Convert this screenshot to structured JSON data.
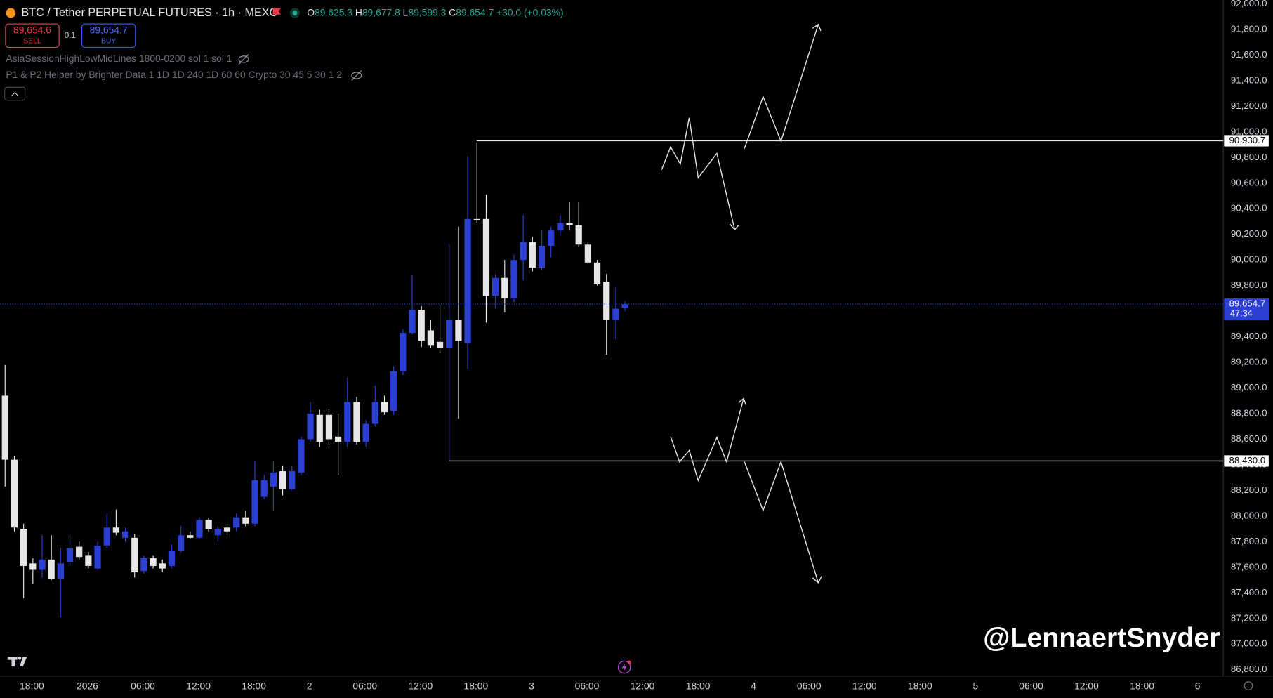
{
  "header": {
    "title": "BTC / Tether PERPETUAL FUTURES · 1h · MEXC",
    "ohlc": [
      {
        "key": "O",
        "value": "89,625.3"
      },
      {
        "key": "H",
        "value": "89,677.8"
      },
      {
        "key": "L",
        "value": "89,599.3"
      },
      {
        "key": "C",
        "value": "89,654.7"
      }
    ],
    "change": "+30.0 (+0.03%)",
    "sell": {
      "price": "89,654.6",
      "label": "SELL"
    },
    "quantity": "0.1",
    "buy": {
      "price": "89,654.7",
      "label": "BUY"
    },
    "indicators": [
      "AsiaSessionHighLowMidLines 1800-0200 sol 1 sol 1",
      "P1 & P2 Helper by Brighter Data 1 1D 1D 240 1D 60 60 Crypto 30 45 5 30 1 2"
    ]
  },
  "watermark": "@LennaertSnyder",
  "chart_data": {
    "type": "candlestick",
    "up_color": "#2b3fd3",
    "down_color": "#e6e6e6",
    "grid": false,
    "open": [
      88940,
      88440,
      87900,
      87630,
      87580,
      87660,
      87510,
      87640,
      87760,
      87690,
      87590,
      87770,
      87910,
      87830,
      87830,
      87570,
      87670,
      87630,
      87610,
      87730,
      87850,
      87830,
      87970,
      87850,
      87910,
      87910,
      87990,
      87940,
      88150,
      88230,
      88350,
      88210,
      88340,
      88600,
      88790,
      88790,
      88620,
      88580,
      88890,
      88580,
      88720,
      88890,
      88820,
      89130,
      89430,
      89610,
      89450,
      89360,
      89310,
      89530,
      89350,
      90320,
      90320,
      89720,
      89860,
      89700,
      90000,
      90140,
      89940,
      90110,
      90230,
      90290,
      90270,
      90120,
      89980,
      89830,
      89530,
      89625.3
    ],
    "high": [
      89180,
      88470,
      87940,
      87670,
      87850,
      87850,
      87750,
      87850,
      87800,
      87720,
      87800,
      88020,
      88050,
      87910,
      87860,
      87690,
      87690,
      87660,
      87780,
      87920,
      87880,
      87990,
      87990,
      87920,
      87940,
      88020,
      88040,
      88430,
      88320,
      88430,
      88390,
      88390,
      88620,
      88890,
      88830,
      88830,
      88800,
      89080,
      88930,
      88750,
      89020,
      88940,
      89170,
      89460,
      89880,
      89640,
      89530,
      89650,
      90130,
      90260,
      90810,
      90920,
      90510,
      89890,
      90000,
      90040,
      90350,
      90180,
      90230,
      90260,
      90350,
      90450,
      90450,
      90140,
      90000,
      89890,
      89790,
      89677.8
    ],
    "low": [
      88230,
      87880,
      87360,
      87470,
      87520,
      87500,
      87210,
      87610,
      87660,
      87590,
      87580,
      87750,
      87850,
      87800,
      87520,
      87550,
      87590,
      87560,
      87590,
      87720,
      87820,
      87820,
      87880,
      87800,
      87850,
      87880,
      87920,
      87920,
      88130,
      88040,
      88160,
      88200,
      88320,
      88580,
      88540,
      88560,
      88320,
      88540,
      88560,
      88540,
      88700,
      88790,
      88790,
      89100,
      89420,
      89320,
      89310,
      89270,
      88430,
      88760,
      89150,
      90290,
      89510,
      89620,
      89590,
      89670,
      89840,
      89910,
      89920,
      90020,
      90190,
      90230,
      90100,
      89970,
      89800,
      89260,
      89380,
      89599.3
    ],
    "close": [
      88440,
      87910,
      87610,
      87580,
      87660,
      87510,
      87630,
      87750,
      87680,
      87610,
      87770,
      87910,
      87870,
      87880,
      87560,
      87670,
      87610,
      87590,
      87730,
      87850,
      87830,
      87970,
      87900,
      87900,
      87880,
      87990,
      87940,
      88280,
      88280,
      88340,
      88210,
      88350,
      88600,
      88800,
      88580,
      88600,
      88580,
      88890,
      88580,
      88720,
      88890,
      88810,
      89130,
      89430,
      89610,
      89370,
      89330,
      89310,
      89530,
      89370,
      90320,
      90310,
      89720,
      89860,
      89700,
      90000,
      90140,
      89940,
      90110,
      90230,
      90290,
      90270,
      90120,
      89980,
      89810,
      89530,
      89620,
      89654.7
    ],
    "ylim": [
      86750,
      92030
    ],
    "yticks": [
      {
        "value": 86800,
        "label": "86,800.0"
      },
      {
        "value": 87000,
        "label": "87,000.0"
      },
      {
        "value": 87200,
        "label": "87,200.0"
      },
      {
        "value": 87400,
        "label": "87,400.0"
      },
      {
        "value": 87600,
        "label": "87,600.0"
      },
      {
        "value": 87800,
        "label": "87,800.0"
      },
      {
        "value": 88000,
        "label": "88,000.0"
      },
      {
        "value": 88200,
        "label": "88,200.0"
      },
      {
        "value": 88400,
        "label": "88,400.0"
      },
      {
        "value": 88600,
        "label": "88,600.0"
      },
      {
        "value": 88800,
        "label": "88,800.0"
      },
      {
        "value": 89000,
        "label": "89,000.0"
      },
      {
        "value": 89200,
        "label": "89,200.0"
      },
      {
        "value": 89400,
        "label": "89,400.0"
      },
      {
        "value": 89600,
        "label": "89,600.0"
      },
      {
        "value": 89800,
        "label": "89,800.0"
      },
      {
        "value": 90000,
        "label": "90,000.0"
      },
      {
        "value": 90200,
        "label": "90,200.0"
      },
      {
        "value": 90400,
        "label": "90,400.0"
      },
      {
        "value": 90600,
        "label": "90,600.0"
      },
      {
        "value": 90800,
        "label": "90,800.0"
      },
      {
        "value": 91000,
        "label": "91,000.0"
      },
      {
        "value": 91200,
        "label": "91,200.0"
      },
      {
        "value": 91400,
        "label": "91,400.0"
      },
      {
        "value": 91600,
        "label": "91,600.0"
      },
      {
        "value": 91800,
        "label": "91,800.0"
      },
      {
        "value": 92000,
        "label": "92,000.0"
      }
    ],
    "xticks": [
      "18:00",
      "2026",
      "06:00",
      "12:00",
      "18:00",
      "2",
      "06:00",
      "12:00",
      "18:00",
      "3",
      "06:00",
      "12:00",
      "18:00",
      "4",
      "06:00",
      "12:00",
      "18:00",
      "5",
      "06:00",
      "12:00",
      "18:00",
      "6"
    ],
    "levels": [
      {
        "value": 90930.7,
        "label": "90,930.7"
      },
      {
        "value": 88430,
        "label": "88,430.0"
      }
    ],
    "last": {
      "value": 89654.7,
      "label": "89,654.7",
      "countdown": "47:34"
    }
  }
}
